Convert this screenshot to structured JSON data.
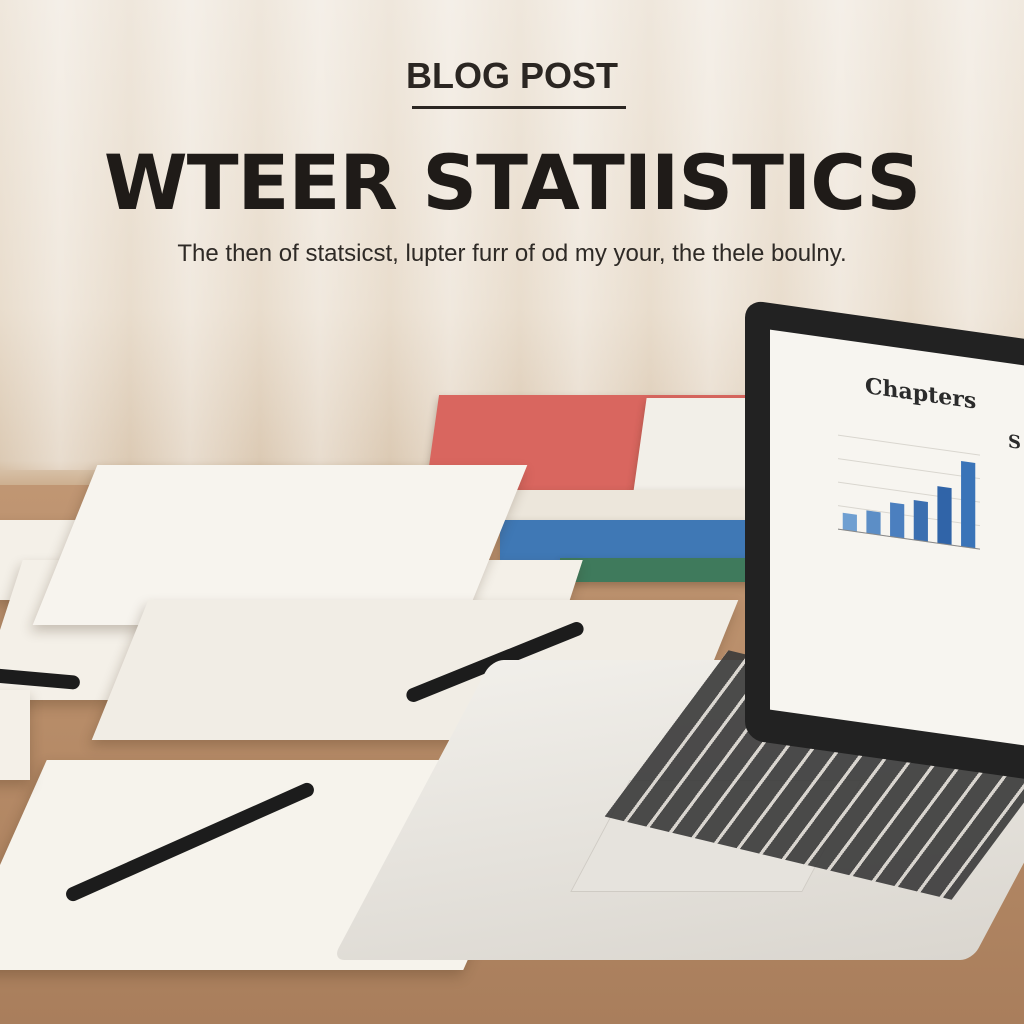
{
  "header": {
    "kicker": "BLOG POST",
    "headline": "WTEER STATIISTICS",
    "subtitle": "The then of statsicst, lupter furr of od my your, the thele boulny."
  },
  "laptop_screen": {
    "title": "Chapters",
    "side_heading": "S"
  },
  "chart_data": {
    "type": "bar",
    "values": [
      1.5,
      2.0,
      3.0,
      3.5,
      5.0,
      7.5
    ],
    "colors": [
      "#6f9fd1",
      "#5c8ec6",
      "#4b7fbf",
      "#3b6fb0",
      "#3064a8",
      "#3a74b8"
    ],
    "grid": true,
    "title": "",
    "xlabel": "",
    "ylabel": ""
  }
}
